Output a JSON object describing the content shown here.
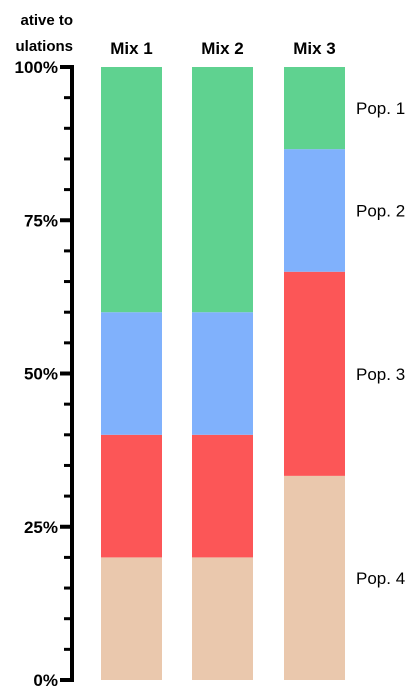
{
  "chart_data": {
    "type": "bar",
    "stacked": true,
    "ylabel_lines": [
      "ative to",
      "ulations"
    ],
    "categories": [
      "Mix 1",
      "Mix 2",
      "Mix 3"
    ],
    "y_tick_labels": [
      "0%",
      "25%",
      "50%",
      "75%",
      "100%"
    ],
    "ylim": [
      0,
      100
    ],
    "series": [
      {
        "name": "Pop. 4",
        "color": "#eac8ad",
        "values": [
          20,
          20,
          33.3
        ]
      },
      {
        "name": "Pop. 3",
        "color": "#fc5657",
        "values": [
          20,
          20,
          33.3
        ]
      },
      {
        "name": "Pop. 2",
        "color": "#80b1fc",
        "values": [
          20,
          20,
          20
        ]
      },
      {
        "name": "Pop. 1",
        "color": "#5fd290",
        "values": [
          40,
          40,
          13.4
        ]
      }
    ],
    "grid": false,
    "legend": "right"
  }
}
